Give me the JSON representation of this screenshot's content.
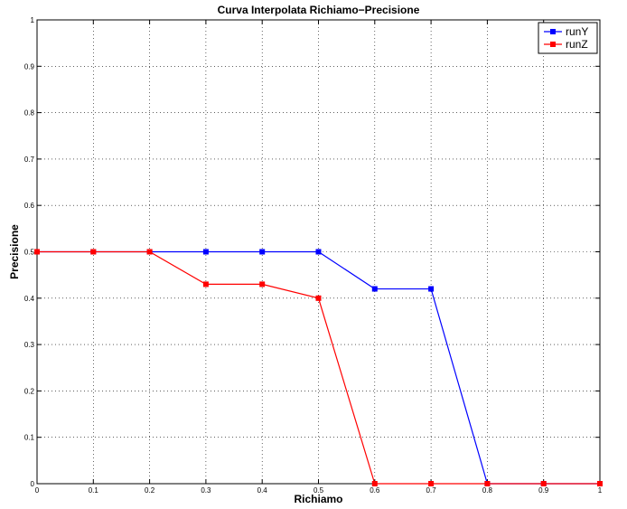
{
  "chart_data": {
    "type": "line",
    "title": "Curva Interpolata Richiamo−Precisione",
    "xlabel": "Richiamo",
    "ylabel": "Precisione",
    "xlim": [
      0,
      1
    ],
    "ylim": [
      0,
      1
    ],
    "xticks": [
      "0",
      "0.1",
      "0.2",
      "0.3",
      "0.4",
      "0.5",
      "0.6",
      "0.7",
      "0.8",
      "0.9",
      "1"
    ],
    "yticks": [
      "0",
      "0.1",
      "0.2",
      "0.3",
      "0.4",
      "0.5",
      "0.6",
      "0.7",
      "0.8",
      "0.9",
      "1"
    ],
    "grid": true,
    "legend_position": "top-right",
    "x": [
      0,
      0.1,
      0.2,
      0.3,
      0.4,
      0.5,
      0.6,
      0.7,
      0.8,
      0.9,
      1.0
    ],
    "series": [
      {
        "name": "runY",
        "color": "#0000ff",
        "values": [
          0.5,
          0.5,
          0.5,
          0.5,
          0.5,
          0.5,
          0.42,
          0.42,
          0.0,
          0.0,
          0.0
        ]
      },
      {
        "name": "runZ",
        "color": "#ff0000",
        "values": [
          0.5,
          0.5,
          0.5,
          0.43,
          0.43,
          0.4,
          0.0,
          0.0,
          0.0,
          0.0,
          0.0
        ]
      }
    ]
  }
}
